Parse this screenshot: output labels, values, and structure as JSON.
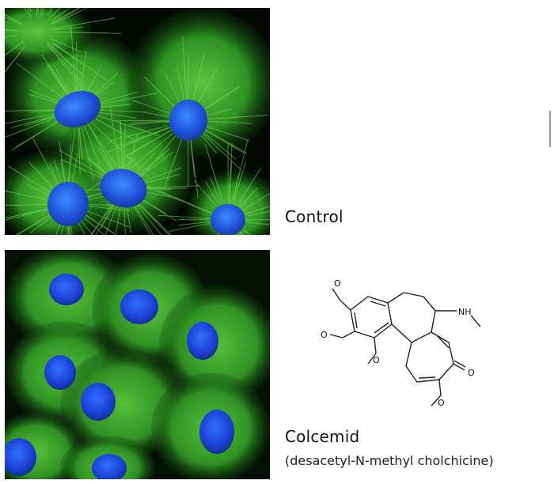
{
  "panels": {
    "control": {
      "label": "Control"
    },
    "colcemid": {
      "label": "Colcemid",
      "sublabel": "(desacetyl-N-methyl cholchicine)"
    }
  },
  "molecule": {
    "atoms": {
      "nh": "NH",
      "o": "O"
    }
  },
  "colors": {
    "microtubule_green": "#3fbf2a",
    "nucleus_blue": "#2a5cf0",
    "background_black": "#000000"
  }
}
